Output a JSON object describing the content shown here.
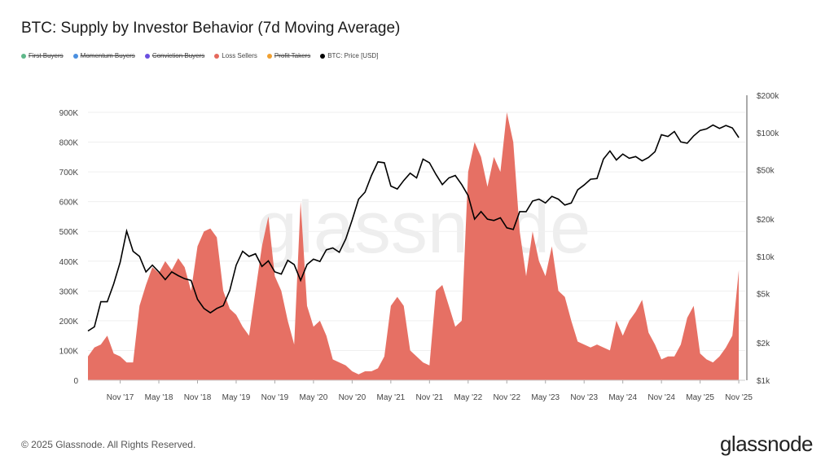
{
  "title": "BTC: Supply by Investor Behavior (7d Moving Average)",
  "legend": [
    {
      "label": "First Buyers",
      "color": "#5fb88a",
      "active": false
    },
    {
      "label": "Momentum Buyers",
      "color": "#4a8fe0",
      "active": false
    },
    {
      "label": "Conviction Buyers",
      "color": "#6a4fe0",
      "active": false
    },
    {
      "label": "Loss Sellers",
      "color": "#e5685c",
      "active": true
    },
    {
      "label": "Profit Takers",
      "color": "#f0a030",
      "active": false
    },
    {
      "label": "BTC: Price [USD]",
      "color": "#000000",
      "active": true
    }
  ],
  "footer": "© 2025 Glassnode. All Rights Reserved.",
  "brand": "glassnode",
  "watermark": "glassnode",
  "chart_data": {
    "type": "area",
    "title": "BTC: Supply by Investor Behavior (7d Moving Average)",
    "y_left": {
      "ticks": [
        "0",
        "100K",
        "200K",
        "300K",
        "400K",
        "500K",
        "600K",
        "700K",
        "800K",
        "900K"
      ],
      "range": [
        0,
        900000
      ]
    },
    "y_right": {
      "scale": "log",
      "ticks": [
        "$1k",
        "$2k",
        "$5k",
        "$10k",
        "$20k",
        "$50k",
        "$100k",
        "$200k"
      ],
      "range": [
        1000,
        200000
      ]
    },
    "x_ticks": [
      "Nov '17",
      "May '18",
      "Nov '18",
      "May '19",
      "Nov '19",
      "May '20",
      "Nov '20",
      "May '21",
      "Nov '21",
      "May '22",
      "Nov '22",
      "May '23",
      "Nov '23",
      "May '24",
      "Nov '24",
      "May '25",
      "Nov '25"
    ],
    "x_tick_dates": [
      "2017-11",
      "2018-05",
      "2018-11",
      "2019-05",
      "2019-11",
      "2020-05",
      "2020-11",
      "2021-05",
      "2021-11",
      "2022-05",
      "2022-11",
      "2023-05",
      "2023-11",
      "2024-05",
      "2024-11",
      "2025-05",
      "2025-11"
    ],
    "x_range": [
      "2017-06",
      "2025-12"
    ],
    "grid": true,
    "dates": [
      "2017-06",
      "2017-07",
      "2017-08",
      "2017-09",
      "2017-10",
      "2017-11",
      "2017-12",
      "2018-01",
      "2018-02",
      "2018-03",
      "2018-04",
      "2018-05",
      "2018-06",
      "2018-07",
      "2018-08",
      "2018-09",
      "2018-10",
      "2018-11",
      "2018-12",
      "2019-01",
      "2019-02",
      "2019-03",
      "2019-04",
      "2019-05",
      "2019-06",
      "2019-07",
      "2019-08",
      "2019-09",
      "2019-10",
      "2019-11",
      "2019-12",
      "2020-01",
      "2020-02",
      "2020-03",
      "2020-04",
      "2020-05",
      "2020-06",
      "2020-07",
      "2020-08",
      "2020-09",
      "2020-10",
      "2020-11",
      "2020-12",
      "2021-01",
      "2021-02",
      "2021-03",
      "2021-04",
      "2021-05",
      "2021-06",
      "2021-07",
      "2021-08",
      "2021-09",
      "2021-10",
      "2021-11",
      "2021-12",
      "2022-01",
      "2022-02",
      "2022-03",
      "2022-04",
      "2022-05",
      "2022-06",
      "2022-07",
      "2022-08",
      "2022-09",
      "2022-10",
      "2022-11",
      "2022-12",
      "2023-01",
      "2023-02",
      "2023-03",
      "2023-04",
      "2023-05",
      "2023-06",
      "2023-07",
      "2023-08",
      "2023-09",
      "2023-10",
      "2023-11",
      "2023-12",
      "2024-01",
      "2024-02",
      "2024-03",
      "2024-04",
      "2024-05",
      "2024-06",
      "2024-07",
      "2024-08",
      "2024-09",
      "2024-10",
      "2024-11",
      "2024-12",
      "2025-01",
      "2025-02",
      "2025-03",
      "2025-04",
      "2025-05",
      "2025-06",
      "2025-07",
      "2025-08",
      "2025-09",
      "2025-10",
      "2025-11"
    ],
    "series": [
      {
        "name": "Loss Sellers",
        "axis": "left",
        "type": "area",
        "color": "#e5685c",
        "values": [
          80000,
          110000,
          120000,
          150000,
          90000,
          80000,
          60000,
          60000,
          250000,
          320000,
          380000,
          360000,
          400000,
          370000,
          410000,
          380000,
          300000,
          450000,
          500000,
          510000,
          480000,
          300000,
          240000,
          220000,
          180000,
          150000,
          300000,
          450000,
          550000,
          350000,
          300000,
          200000,
          120000,
          600000,
          250000,
          180000,
          200000,
          150000,
          70000,
          60000,
          50000,
          30000,
          20000,
          30000,
          30000,
          40000,
          80000,
          250000,
          280000,
          250000,
          100000,
          80000,
          60000,
          50000,
          300000,
          320000,
          250000,
          180000,
          200000,
          700000,
          800000,
          750000,
          650000,
          750000,
          700000,
          900000,
          800000,
          500000,
          350000,
          500000,
          400000,
          350000,
          450000,
          300000,
          280000,
          200000,
          130000,
          120000,
          110000,
          120000,
          110000,
          100000,
          200000,
          150000,
          200000,
          230000,
          270000,
          160000,
          120000,
          70000,
          80000,
          80000,
          120000,
          210000,
          250000,
          90000,
          70000,
          60000,
          80000,
          110000,
          150000,
          370000
        ]
      },
      {
        "name": "BTC: Price [USD]",
        "axis": "right",
        "type": "line",
        "color": "#000000",
        "values": [
          2500,
          2700,
          4300,
          4300,
          6000,
          9000,
          16000,
          11000,
          10000,
          7500,
          8500,
          7500,
          6500,
          7500,
          7000,
          6600,
          6400,
          4500,
          3800,
          3500,
          3800,
          4000,
          5300,
          8500,
          11000,
          10000,
          10500,
          8300,
          9200,
          7500,
          7200,
          9300,
          8600,
          6400,
          8600,
          9500,
          9100,
          11300,
          11700,
          10800,
          13800,
          19700,
          29000,
          33000,
          45000,
          58000,
          57000,
          37000,
          35000,
          41000,
          47000,
          43000,
          61000,
          57000,
          46000,
          38000,
          43000,
          45000,
          38000,
          31000,
          20000,
          23000,
          20000,
          19500,
          20500,
          17000,
          16500,
          23000,
          23000,
          28000,
          29000,
          27000,
          30500,
          29000,
          26000,
          27000,
          34500,
          37700,
          42000,
          42500,
          61000,
          71000,
          60000,
          67000,
          62000,
          64000,
          59000,
          63000,
          70000,
          96000,
          93000,
          102000,
          84000,
          82000,
          94000,
          104000,
          107000,
          115000,
          108000,
          114000,
          109000,
          91000
        ]
      }
    ]
  }
}
